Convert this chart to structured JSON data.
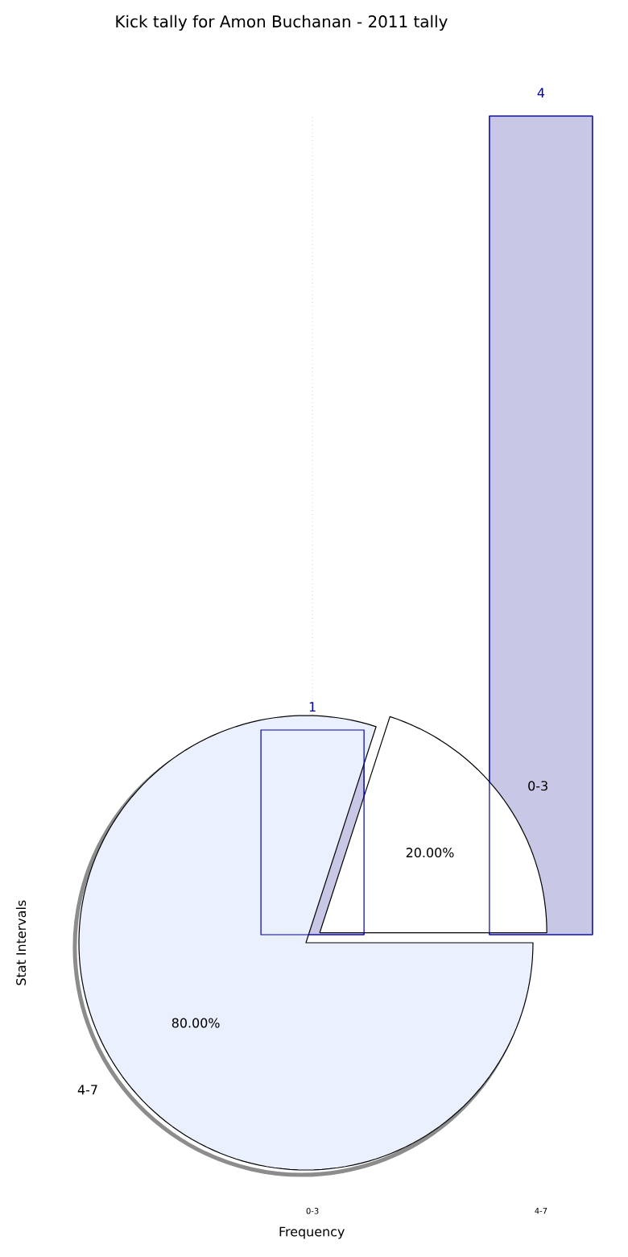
{
  "chart_data": [
    {
      "type": "bar",
      "title": "Kick tally for Amon Buchanan - 2011 tally",
      "xlabel": "Frequency",
      "ylabel": "Stat Intervals",
      "categories": [
        "0-3",
        "4-7"
      ],
      "values": [
        1,
        4
      ],
      "color": "#c8c8e6",
      "data_labels": true,
      "grid": "x"
    },
    {
      "type": "pie",
      "categories": [
        "0-3",
        "4-7"
      ],
      "values": [
        20,
        80
      ],
      "colors": [
        "#ffffff",
        "#eaf0fd"
      ],
      "value_labels": [
        "20.00%",
        "80.00%"
      ]
    }
  ]
}
